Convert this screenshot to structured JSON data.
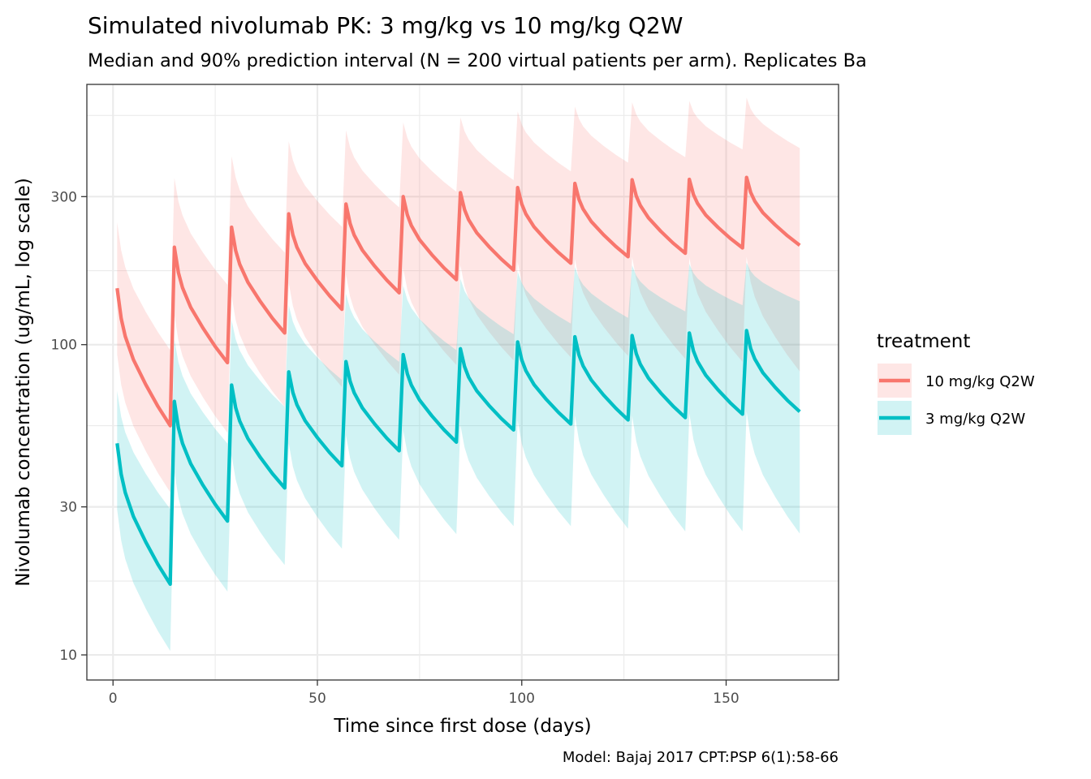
{
  "chart_data": {
    "type": "line",
    "title": "Simulated nivolumab PK: 3 mg/kg vs 10 mg/kg Q2W",
    "subtitle": "Median and 90% prediction interval (N = 200 virtual patients per arm). Replicates Ba",
    "xlabel": "Time since first dose (days)",
    "ylabel": "Nivolumab concentration (ug/mL, log scale)",
    "caption": "Model: Bajaj 2017 CPT:PSP 6(1):58-66",
    "x_scale": "linear",
    "y_scale": "log10",
    "xlim": [
      -6.4,
      177.5
    ],
    "ylim": [
      8.3,
      690
    ],
    "x_ticks": [
      0,
      50,
      100,
      150
    ],
    "x_tick_labels": [
      "0",
      "50",
      "100",
      "150"
    ],
    "x_minor_ticks": [
      25,
      75,
      125
    ],
    "y_ticks": [
      10,
      30,
      100,
      300
    ],
    "y_tick_labels": [
      "10",
      "30",
      "100",
      "300"
    ],
    "y_minor_ticks": [
      17.3,
      54.8,
      173.2,
      547.7
    ],
    "grid": true,
    "legend": {
      "title": "treatment",
      "position": "right",
      "entries": [
        {
          "label": "10 mg/kg Q2W",
          "color": "#F8766D"
        },
        {
          "label": "3 mg/kg Q2W",
          "color": "#00BFC4"
        }
      ]
    },
    "ribbon_opacity": 0.18,
    "intra_interval_profile": {
      "note": "fraction of log-decline from peak to trough by days after dose sample",
      "offsets_days": [
        0,
        1,
        2,
        4,
        7,
        10,
        13
      ],
      "fraction": [
        0,
        0.22,
        0.35,
        0.52,
        0.7,
        0.86,
        1.0
      ]
    },
    "series": [
      {
        "name": "10 mg/kg Q2W",
        "color": "#F8766D",
        "intervals": [
          {
            "start_day": 1,
            "peak": 152,
            "trough": 54.8,
            "peak_hi": 248,
            "peak_lo": 93,
            "trough_hi": 96,
            "trough_lo": 33.4
          },
          {
            "start_day": 15,
            "peak": 206,
            "trough": 87.5,
            "peak_hi": 345,
            "peak_lo": 125,
            "trough_hi": 156,
            "trough_lo": 52
          },
          {
            "start_day": 29,
            "peak": 239,
            "trough": 109,
            "peak_hi": 405,
            "peak_lo": 144,
            "trough_hi": 198,
            "trough_lo": 63
          },
          {
            "start_day": 43,
            "peak": 264,
            "trough": 130,
            "peak_hi": 452,
            "peak_lo": 158,
            "trough_hi": 240,
            "trough_lo": 73
          },
          {
            "start_day": 57,
            "peak": 284,
            "trough": 147,
            "peak_hi": 490,
            "peak_lo": 168,
            "trough_hi": 277,
            "trough_lo": 80
          },
          {
            "start_day": 71,
            "peak": 300,
            "trough": 162,
            "peak_hi": 520,
            "peak_lo": 176,
            "trough_hi": 311,
            "trough_lo": 86
          },
          {
            "start_day": 85,
            "peak": 309,
            "trough": 174,
            "peak_hi": 540,
            "peak_lo": 180,
            "trough_hi": 339,
            "trough_lo": 89
          },
          {
            "start_day": 99,
            "peak": 321,
            "trough": 183,
            "peak_hi": 565,
            "peak_lo": 185,
            "trough_hi": 362,
            "trough_lo": 91
          },
          {
            "start_day": 113,
            "peak": 331,
            "trough": 192,
            "peak_hi": 585,
            "peak_lo": 189,
            "trough_hi": 386,
            "trough_lo": 92
          },
          {
            "start_day": 127,
            "peak": 340,
            "trough": 197,
            "peak_hi": 604,
            "peak_lo": 192,
            "trough_hi": 402,
            "trough_lo": 90
          },
          {
            "start_day": 141,
            "peak": 341,
            "trough": 205,
            "peak_hi": 610,
            "peak_lo": 191,
            "trough_hi": 426,
            "trough_lo": 88
          },
          {
            "start_day": 155,
            "peak": 346,
            "trough": 209,
            "peak_hi": 625,
            "peak_lo": 192,
            "trough_hi": 430,
            "trough_lo": 82
          }
        ]
      },
      {
        "name": "3 mg/kg Q2W",
        "color": "#00BFC4",
        "intervals": [
          {
            "start_day": 1,
            "peak": 48.1,
            "trough": 16.9,
            "peak_hi": 71,
            "peak_lo": 29.4,
            "trough_hi": 29.5,
            "trough_lo": 10.3
          },
          {
            "start_day": 15,
            "peak": 65.6,
            "trough": 27.0,
            "peak_hi": 104,
            "peak_lo": 39,
            "trough_hi": 48,
            "trough_lo": 16
          },
          {
            "start_day": 29,
            "peak": 74.1,
            "trough": 34.5,
            "peak_hi": 120,
            "peak_lo": 44,
            "trough_hi": 63,
            "trough_lo": 19.5
          },
          {
            "start_day": 43,
            "peak": 81.7,
            "trough": 40.7,
            "peak_hi": 134,
            "peak_lo": 48,
            "trough_hi": 77,
            "trough_lo": 22
          },
          {
            "start_day": 57,
            "peak": 88.2,
            "trough": 45.5,
            "peak_hi": 146,
            "peak_lo": 51,
            "trough_hi": 88,
            "trough_lo": 23.5
          },
          {
            "start_day": 71,
            "peak": 92.9,
            "trough": 48.5,
            "peak_hi": 155,
            "peak_lo": 53,
            "trough_hi": 96,
            "trough_lo": 24.5
          },
          {
            "start_day": 85,
            "peak": 97.0,
            "trough": 53.1,
            "peak_hi": 163,
            "peak_lo": 55,
            "trough_hi": 108,
            "trough_lo": 26
          },
          {
            "start_day": 99,
            "peak": 102,
            "trough": 55.5,
            "peak_hi": 172,
            "peak_lo": 57,
            "trough_hi": 117,
            "trough_lo": 26
          },
          {
            "start_day": 113,
            "peak": 106,
            "trough": 57.2,
            "peak_hi": 178,
            "peak_lo": 59,
            "trough_hi": 122,
            "trough_lo": 25.5
          },
          {
            "start_day": 127,
            "peak": 107,
            "trough": 58.2,
            "peak_hi": 180,
            "peak_lo": 59,
            "trough_hi": 128,
            "trough_lo": 25
          },
          {
            "start_day": 141,
            "peak": 109,
            "trough": 59.7,
            "peak_hi": 182,
            "peak_lo": 60,
            "trough_hi": 134,
            "trough_lo": 25
          },
          {
            "start_day": 155,
            "peak": 111,
            "trough": 60.8,
            "peak_hi": 184,
            "peak_lo": 61,
            "trough_hi": 138,
            "trough_lo": 24.6
          }
        ]
      }
    ]
  }
}
